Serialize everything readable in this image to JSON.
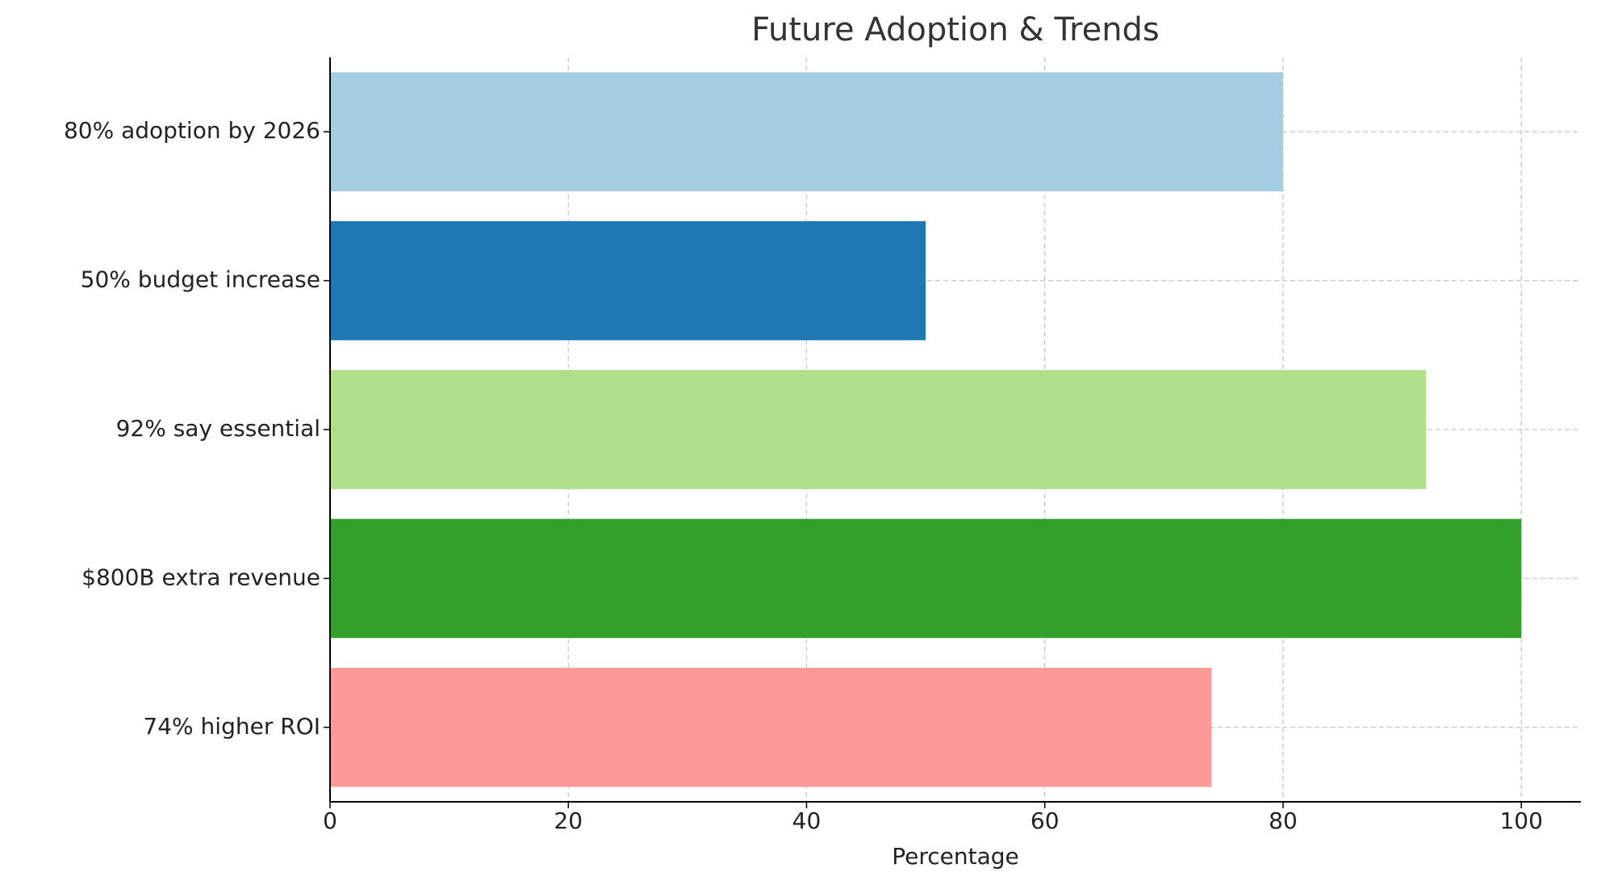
{
  "chart_data": {
    "type": "barh",
    "title": "Future Adoption & Trends",
    "x_label": "Percentage",
    "categories": [
      "80% adoption by 2026",
      "50% budget increase",
      "92% say essential",
      "$800B extra revenue",
      "74% higher ROI"
    ],
    "values": [
      80,
      50,
      92,
      100,
      74
    ],
    "colors": [
      "#a6cee3",
      "#1f78b4",
      "#b2df8a",
      "#33a02c",
      "#fb9a99"
    ],
    "xlim": [
      0,
      105
    ],
    "xticks": [
      0,
      20,
      40,
      60,
      80,
      100
    ],
    "grid": true
  }
}
